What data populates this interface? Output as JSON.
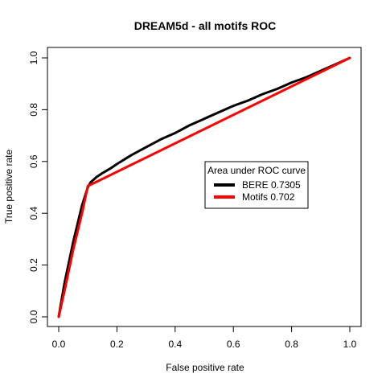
{
  "chart_data": {
    "type": "line",
    "title": "DREAM5d - all motifs ROC",
    "xlabel": "False positive rate",
    "ylabel": "True positive rate",
    "xlim": [
      0,
      1
    ],
    "ylim": [
      0,
      1
    ],
    "x_ticks": [
      "0.0",
      "0.2",
      "0.4",
      "0.6",
      "0.8",
      "1.0"
    ],
    "y_ticks": [
      "0.0",
      "0.2",
      "0.4",
      "0.6",
      "0.8",
      "1.0"
    ],
    "grid": false,
    "legend": {
      "title": "Area under ROC curve",
      "position": "center-right"
    },
    "series": [
      {
        "name": "BERE 0.7305",
        "color": "#000000",
        "x": [
          0.0,
          0.02,
          0.05,
          0.08,
          0.1,
          0.11,
          0.13,
          0.15,
          0.18,
          0.2,
          0.25,
          0.3,
          0.35,
          0.4,
          0.45,
          0.5,
          0.55,
          0.6,
          0.65,
          0.7,
          0.75,
          0.8,
          0.85,
          0.9,
          0.95,
          1.0
        ],
        "y": [
          0.0,
          0.13,
          0.29,
          0.43,
          0.5,
          0.52,
          0.54,
          0.555,
          0.575,
          0.59,
          0.625,
          0.655,
          0.685,
          0.71,
          0.74,
          0.765,
          0.79,
          0.815,
          0.835,
          0.86,
          0.88,
          0.905,
          0.925,
          0.95,
          0.975,
          1.0
        ]
      },
      {
        "name": "Motifs 0.702",
        "color": "#ff0000",
        "x": [
          0.0,
          0.02,
          0.05,
          0.08,
          0.1,
          1.0
        ],
        "y": [
          0.0,
          0.1,
          0.26,
          0.4,
          0.505,
          1.0
        ]
      }
    ]
  }
}
